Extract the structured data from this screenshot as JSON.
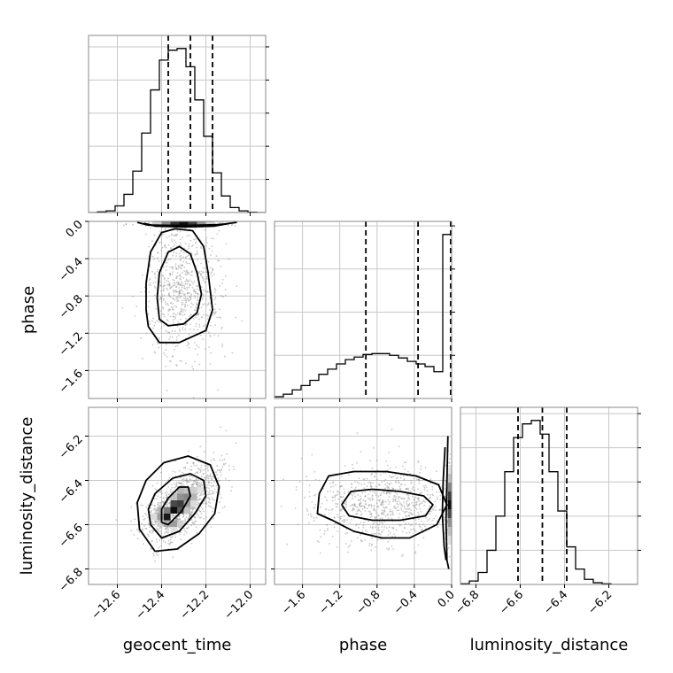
{
  "chart_data": {
    "type": "corner",
    "parameters": [
      "geocent_time",
      "phase",
      "luminosity_distance"
    ],
    "ranges": {
      "geocent_time": [
        -12.73,
        -11.93
      ],
      "phase": [
        -1.9,
        0.0
      ],
      "luminosity_distance": [
        -6.87,
        -6.07
      ]
    },
    "ticks": {
      "geocent_time": [
        -12.6,
        -12.4,
        -12.2,
        -12.0
      ],
      "phase": [
        -1.6,
        -1.2,
        -0.8,
        -0.4,
        0.0
      ],
      "luminosity_distance": [
        -6.8,
        -6.6,
        -6.4,
        -6.2
      ]
    },
    "tick_labels": {
      "geocent_time": [
        "−12.6",
        "−12.4",
        "−12.2",
        "−12.0"
      ],
      "phase": [
        "−1.6",
        "−1.2",
        "−0.8",
        "−0.4",
        "0.0"
      ],
      "luminosity_distance": [
        "−6.8",
        "−6.6",
        "−6.4",
        "−6.2"
      ]
    },
    "quantiles": {
      "geocent_time": [
        -12.37,
        -12.27,
        -12.17
      ],
      "phase": [
        -0.92,
        -0.36,
        -0.01
      ],
      "luminosity_distance": [
        -6.61,
        -6.5,
        -6.39
      ]
    },
    "histograms": {
      "geocent_time": {
        "bin_edges": [
          -12.73,
          -12.69,
          -12.65,
          -12.61,
          -12.57,
          -12.53,
          -12.49,
          -12.45,
          -12.41,
          -12.37,
          -12.33,
          -12.29,
          -12.25,
          -12.21,
          -12.17,
          -12.13,
          -12.09,
          -12.05,
          -12.01,
          -11.97,
          -11.93
        ],
        "counts": [
          0,
          2,
          5,
          20,
          55,
          125,
          240,
          370,
          460,
          490,
          495,
          440,
          340,
          230,
          120,
          50,
          15,
          5,
          1,
          0
        ]
      },
      "phase": {
        "bin_edges": [
          -1.9,
          -1.805,
          -1.71,
          -1.615,
          -1.52,
          -1.425,
          -1.33,
          -1.235,
          -1.14,
          -1.045,
          -0.95,
          -0.855,
          -0.76,
          -0.665,
          -0.57,
          -0.475,
          -0.38,
          -0.285,
          -0.19,
          -0.095,
          0.0
        ],
        "counts": [
          2,
          5,
          10,
          15,
          21,
          28,
          34,
          40,
          45,
          48,
          51,
          52,
          52,
          50,
          47,
          43,
          40,
          37,
          31,
          190
        ]
      },
      "luminosity_distance": {
        "bin_edges": [
          -6.87,
          -6.83,
          -6.79,
          -6.75,
          -6.71,
          -6.67,
          -6.63,
          -6.59,
          -6.55,
          -6.51,
          -6.47,
          -6.43,
          -6.39,
          -6.35,
          -6.31,
          -6.27,
          -6.23,
          -6.19,
          -6.15,
          -6.11,
          -6.07
        ],
        "counts": [
          2,
          10,
          35,
          100,
          200,
          330,
          430,
          470,
          480,
          440,
          330,
          215,
          110,
          45,
          15,
          5,
          2,
          0,
          0,
          0
        ]
      }
    },
    "contour_sets": {
      "phase_vs_geocent_time": [
        [
          [
            -12.41,
            -1.05
          ],
          [
            -12.37,
            -1.12
          ],
          [
            -12.3,
            -1.1
          ],
          [
            -12.24,
            -0.98
          ],
          [
            -12.22,
            -0.78
          ],
          [
            -12.24,
            -0.55
          ],
          [
            -12.27,
            -0.35
          ],
          [
            -12.32,
            -0.27
          ],
          [
            -12.37,
            -0.33
          ],
          [
            -12.41,
            -0.55
          ],
          [
            -12.42,
            -0.82
          ],
          [
            -12.41,
            -1.05
          ]
        ],
        [
          [
            -12.46,
            -1.13
          ],
          [
            -12.41,
            -1.3
          ],
          [
            -12.32,
            -1.3
          ],
          [
            -12.2,
            -1.17
          ],
          [
            -12.17,
            -0.95
          ],
          [
            -12.19,
            -0.55
          ],
          [
            -12.21,
            -0.27
          ],
          [
            -12.26,
            -0.1
          ],
          [
            -12.34,
            -0.08
          ],
          [
            -12.4,
            -0.12
          ],
          [
            -12.45,
            -0.33
          ],
          [
            -12.47,
            -0.66
          ],
          [
            -12.47,
            -0.95
          ],
          [
            -12.46,
            -1.13
          ]
        ],
        [
          [
            -12.48,
            -0.02
          ],
          [
            -12.43,
            -0.05
          ],
          [
            -12.3,
            -0.06
          ],
          [
            -12.16,
            -0.05
          ],
          [
            -12.09,
            -0.02
          ]
        ],
        [
          [
            -12.51,
            -0.01
          ],
          [
            -12.46,
            -0.04
          ],
          [
            -12.3,
            -0.045
          ],
          [
            -12.14,
            -0.035
          ],
          [
            -12.06,
            -0.01
          ]
        ]
      ],
      "luminosity_distance_vs_geocent_time": [
        [
          [
            -12.4,
            -6.59
          ],
          [
            -12.37,
            -6.6
          ],
          [
            -12.31,
            -6.54
          ],
          [
            -12.27,
            -6.47
          ],
          [
            -12.28,
            -6.43
          ],
          [
            -12.32,
            -6.43
          ],
          [
            -12.37,
            -6.48
          ],
          [
            -12.4,
            -6.53
          ],
          [
            -12.4,
            -6.59
          ]
        ],
        [
          [
            -12.45,
            -6.6
          ],
          [
            -12.4,
            -6.66
          ],
          [
            -12.32,
            -6.63
          ],
          [
            -12.25,
            -6.55
          ],
          [
            -12.2,
            -6.47
          ],
          [
            -12.21,
            -6.4
          ],
          [
            -12.27,
            -6.37
          ],
          [
            -12.35,
            -6.39
          ],
          [
            -12.43,
            -6.46
          ],
          [
            -12.46,
            -6.53
          ],
          [
            -12.45,
            -6.6
          ]
        ],
        [
          [
            -12.5,
            -6.62
          ],
          [
            -12.43,
            -6.72
          ],
          [
            -12.33,
            -6.71
          ],
          [
            -12.23,
            -6.64
          ],
          [
            -12.16,
            -6.55
          ],
          [
            -12.14,
            -6.43
          ],
          [
            -12.18,
            -6.33
          ],
          [
            -12.28,
            -6.29
          ],
          [
            -12.39,
            -6.32
          ],
          [
            -12.47,
            -6.4
          ],
          [
            -12.51,
            -6.5
          ],
          [
            -12.5,
            -6.62
          ]
        ]
      ],
      "luminosity_distance_vs_phase": [
        [
          [
            -1.18,
            -6.51
          ],
          [
            -1.08,
            -6.45
          ],
          [
            -0.85,
            -6.44
          ],
          [
            -0.55,
            -6.45
          ],
          [
            -0.3,
            -6.47
          ],
          [
            -0.2,
            -6.51
          ],
          [
            -0.28,
            -6.56
          ],
          [
            -0.55,
            -6.58
          ],
          [
            -0.85,
            -6.58
          ],
          [
            -1.1,
            -6.56
          ],
          [
            -1.18,
            -6.51
          ]
        ],
        [
          [
            -1.42,
            -6.46
          ],
          [
            -1.32,
            -6.38
          ],
          [
            -1.05,
            -6.36
          ],
          [
            -0.7,
            -6.36
          ],
          [
            -0.38,
            -6.38
          ],
          [
            -0.14,
            -6.42
          ],
          [
            -0.05,
            -6.51
          ],
          [
            -0.16,
            -6.6
          ],
          [
            -0.45,
            -6.66
          ],
          [
            -0.75,
            -6.66
          ],
          [
            -1.05,
            -6.63
          ],
          [
            -1.28,
            -6.58
          ],
          [
            -1.44,
            -6.55
          ],
          [
            -1.42,
            -6.46
          ]
        ],
        [
          [
            -0.07,
            -6.25
          ],
          [
            -0.09,
            -6.4
          ],
          [
            -0.1,
            -6.55
          ],
          [
            -0.08,
            -6.7
          ],
          [
            -0.06,
            -6.76
          ]
        ],
        [
          [
            -0.04,
            -6.2
          ],
          [
            -0.05,
            -6.4
          ],
          [
            -0.06,
            -6.58
          ],
          [
            -0.05,
            -6.76
          ],
          [
            -0.03,
            -6.8
          ]
        ]
      ]
    },
    "density_cells": {
      "luminosity_distance_vs_geocent_time": [
        {
          "x": -12.375,
          "y": -6.565,
          "v": 0.95
        },
        {
          "x": -12.345,
          "y": -6.535,
          "v": 1.0
        },
        {
          "x": -12.315,
          "y": -6.505,
          "v": 0.8
        },
        {
          "x": -12.345,
          "y": -6.505,
          "v": 0.75
        },
        {
          "x": -12.315,
          "y": -6.535,
          "v": 0.7
        },
        {
          "x": -12.375,
          "y": -6.535,
          "v": 0.55
        },
        {
          "x": -12.285,
          "y": -6.475,
          "v": 0.5
        },
        {
          "x": -12.315,
          "y": -6.475,
          "v": 0.45
        },
        {
          "x": -12.405,
          "y": -6.565,
          "v": 0.4
        },
        {
          "x": -12.345,
          "y": -6.595,
          "v": 0.4
        },
        {
          "x": -12.285,
          "y": -6.505,
          "v": 0.4
        },
        {
          "x": -12.375,
          "y": -6.595,
          "v": 0.35
        },
        {
          "x": -12.255,
          "y": -6.475,
          "v": 0.3
        },
        {
          "x": -12.405,
          "y": -6.535,
          "v": 0.3
        },
        {
          "x": -12.315,
          "y": -6.445,
          "v": 0.3
        },
        {
          "x": -12.285,
          "y": -6.445,
          "v": 0.25
        },
        {
          "x": -12.285,
          "y": -6.535,
          "v": 0.25
        },
        {
          "x": -12.345,
          "y": -6.475,
          "v": 0.25
        },
        {
          "x": -12.405,
          "y": -6.595,
          "v": 0.2
        },
        {
          "x": -12.315,
          "y": -6.595,
          "v": 0.2
        },
        {
          "x": -12.255,
          "y": -6.445,
          "v": 0.2
        },
        {
          "x": -12.435,
          "y": -6.565,
          "v": 0.15
        },
        {
          "x": -12.255,
          "y": -6.505,
          "v": 0.15
        },
        {
          "x": -12.225,
          "y": -6.445,
          "v": 0.12
        },
        {
          "x": -12.345,
          "y": -6.625,
          "v": 0.12
        }
      ],
      "phase_vs_geocent_time": [
        {
          "x": -12.3,
          "y": -0.02,
          "v": 1.0
        },
        {
          "x": -12.34,
          "y": -0.02,
          "v": 0.85
        },
        {
          "x": -12.26,
          "y": -0.02,
          "v": 0.8
        },
        {
          "x": -12.38,
          "y": -0.02,
          "v": 0.5
        },
        {
          "x": -12.22,
          "y": -0.02,
          "v": 0.45
        },
        {
          "x": -12.42,
          "y": -0.02,
          "v": 0.2
        },
        {
          "x": -12.18,
          "y": -0.02,
          "v": 0.2
        }
      ],
      "luminosity_distance_vs_phase": [
        {
          "x": -0.02,
          "y": -6.51,
          "v": 1.0
        },
        {
          "x": -0.02,
          "y": -6.47,
          "v": 0.8
        },
        {
          "x": -0.02,
          "y": -6.55,
          "v": 0.75
        },
        {
          "x": -0.02,
          "y": -6.43,
          "v": 0.5
        },
        {
          "x": -0.02,
          "y": -6.59,
          "v": 0.45
        },
        {
          "x": -0.02,
          "y": -6.39,
          "v": 0.25
        },
        {
          "x": -0.02,
          "y": -6.63,
          "v": 0.25
        },
        {
          "x": -0.02,
          "y": -6.35,
          "v": 0.12
        },
        {
          "x": -0.02,
          "y": -6.67,
          "v": 0.12
        }
      ]
    },
    "grid": true,
    "colors": {
      "line": "#000000",
      "scatter": "#9a9a9a",
      "grid": "#c8c8c8"
    }
  }
}
